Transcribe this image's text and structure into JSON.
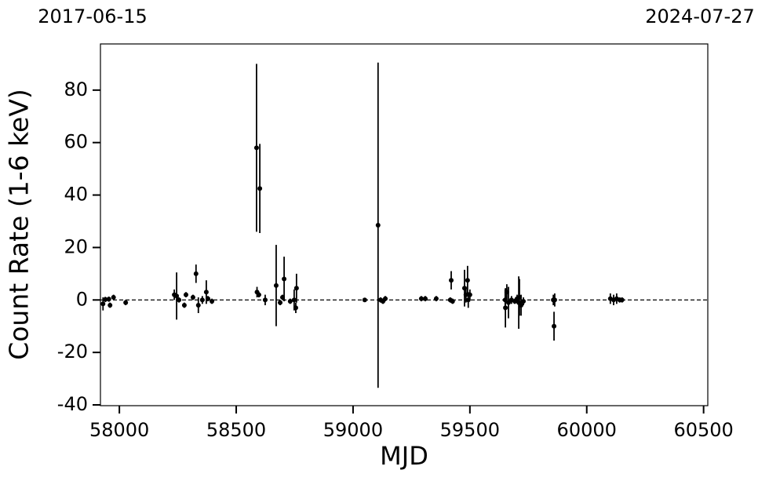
{
  "chart_data": {
    "type": "errorbar-scatter",
    "xlabel": "MJD",
    "ylabel": "Count Rate (1-6 keV)",
    "xlim": [
      57919,
      60518
    ],
    "ylim": [
      -40.3,
      97.6
    ],
    "xticks": [
      58000,
      58500,
      59000,
      59500,
      60000,
      60500
    ],
    "yticks": [
      -40,
      -20,
      0,
      20,
      40,
      60,
      80
    ],
    "x2ticks": [
      {
        "value": 57919,
        "label": "2017-06-15"
      },
      {
        "value": 60518,
        "label": "2024-07-27"
      }
    ],
    "hline": 0,
    "series": [
      {
        "color": "#000000",
        "x": [
          57930,
          57940,
          57955,
          57960,
          57975,
          58027,
          58235,
          58245,
          58255,
          58278,
          58285,
          58315,
          58328,
          58338,
          58355,
          58372,
          58379,
          58396,
          58587,
          58589,
          58597,
          58601,
          58624,
          58671,
          58688,
          58698,
          58705,
          58731,
          58748,
          58755,
          58758,
          59050,
          59107,
          59118,
          59128,
          59138,
          59292,
          59309,
          59356,
          59416,
          59420,
          59426,
          59477,
          59483,
          59490,
          59493,
          59500,
          59651,
          59652,
          59658,
          59665,
          59678,
          59692,
          59702,
          59709,
          59712,
          59719,
          59729,
          59857,
          59860,
          59863,
          60101,
          60115,
          60128,
          60141,
          60151
        ],
        "values": [
          -1.5,
          0.2,
          0.3,
          -2,
          1,
          -1,
          2,
          1.5,
          0,
          -2,
          2,
          1,
          10,
          -2,
          0,
          3,
          0.5,
          -0.5,
          58,
          3,
          2,
          42.5,
          0,
          5.5,
          -1,
          1,
          8,
          -0.5,
          0,
          -3,
          4.5,
          0,
          28.5,
          0,
          -0.5,
          0.5,
          0.5,
          0.5,
          0.5,
          0,
          7.5,
          -0.5,
          4.5,
          2,
          7.5,
          0,
          2,
          0,
          -3,
          3,
          -1,
          0,
          -0.5,
          0.5,
          -1,
          1,
          -2,
          -0.5,
          0,
          -10,
          0,
          0.5,
          0,
          0.5,
          0,
          0
        ],
        "errors": [
          2.5,
          1,
          1,
          1,
          1,
          1,
          2,
          9,
          1,
          1,
          1,
          1,
          3.5,
          3,
          1.5,
          4.5,
          1,
          1,
          32,
          2,
          1,
          17,
          2,
          15.5,
          1,
          1,
          8.5,
          1,
          4,
          2,
          5.5,
          0.5,
          62,
          1,
          1,
          1,
          1,
          1,
          1,
          1,
          3.5,
          1,
          7,
          3,
          5.5,
          3,
          2,
          4,
          7.5,
          3,
          6,
          1.5,
          1,
          1.5,
          10,
          7,
          4,
          1.5,
          2,
          5.5,
          2.5,
          2,
          2,
          2,
          1,
          1
        ]
      }
    ]
  }
}
